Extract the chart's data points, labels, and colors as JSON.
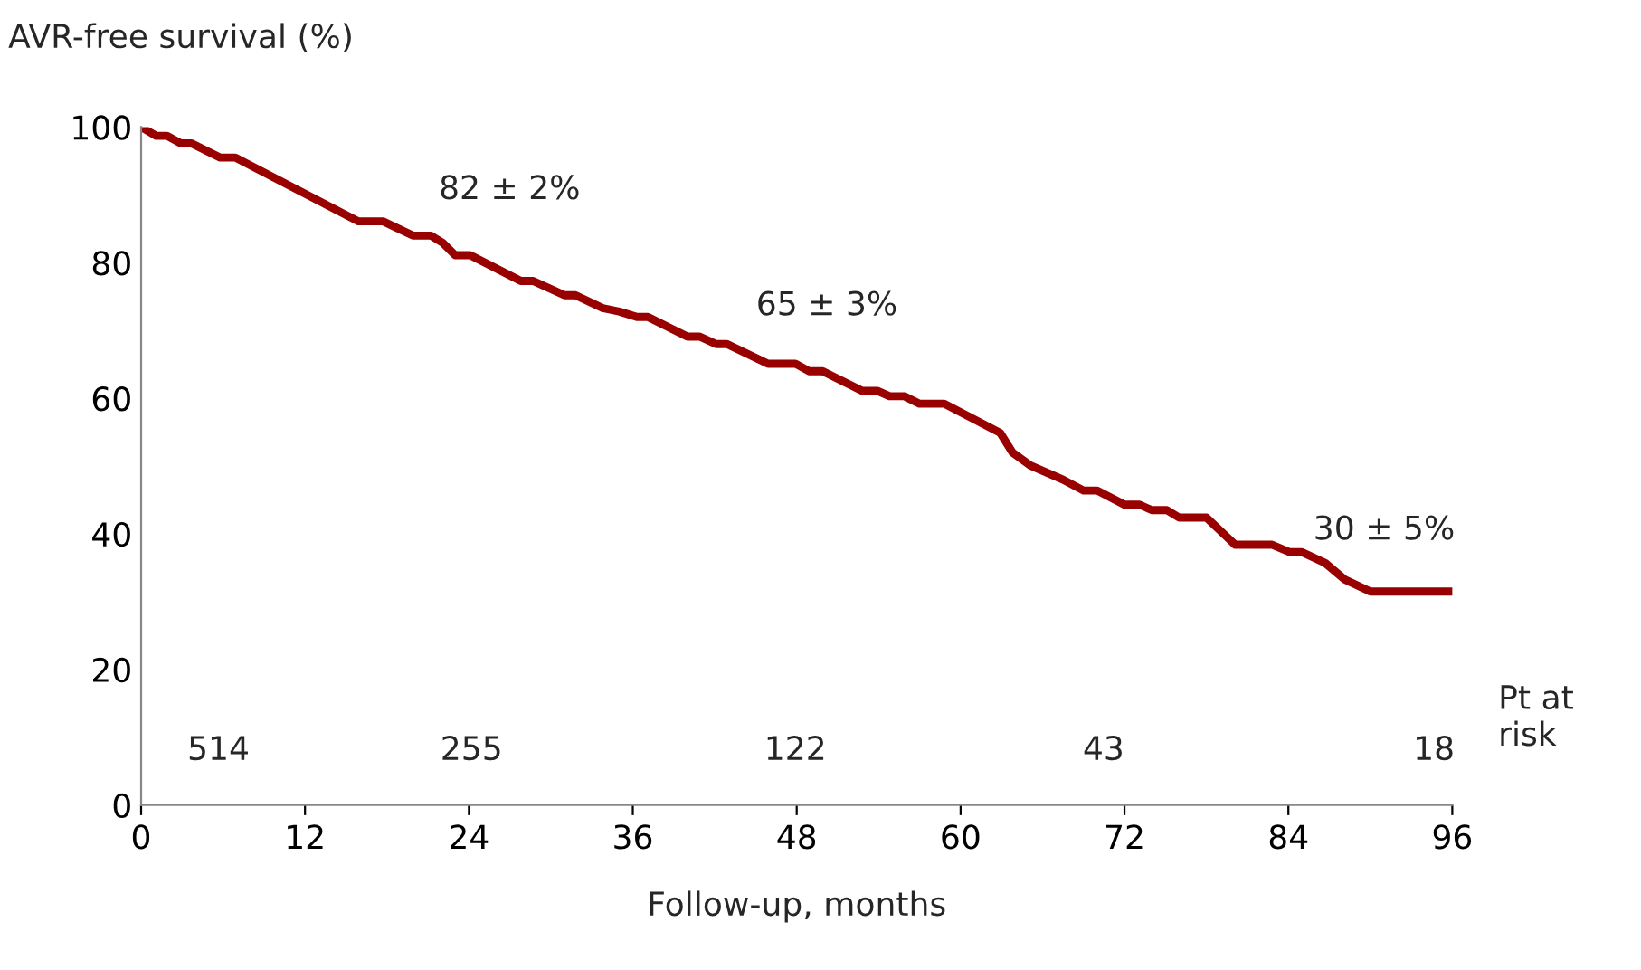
{
  "chart_data": {
    "type": "line",
    "xlabel": "Follow-up, months",
    "ylabel": "AVR-free survival (%)",
    "x": [
      0,
      1.1,
      1.9,
      2.9,
      3.7,
      5.8,
      6.9,
      15.9,
      17.7,
      19.9,
      21.2,
      22.1,
      23,
      24.1,
      27.8,
      28.7,
      31,
      31.8,
      33.8,
      35,
      36.3,
      37.1,
      40,
      40.9,
      42.1,
      42.9,
      45.9,
      47.9,
      48.9,
      49.9,
      52.8,
      53.9,
      54.8,
      55.9,
      57,
      58.8,
      62.9,
      63.8,
      65.1,
      67.5,
      69,
      70,
      72,
      73.1,
      74,
      75.1,
      76,
      78,
      80.1,
      82.8,
      84.1,
      85,
      86.7,
      88.1,
      90,
      96
    ],
    "series": [
      {
        "color": "#990000",
        "values": [
          100,
          98.7,
          98.7,
          97.6,
          97.6,
          95.5,
          95.5,
          86.1,
          86.1,
          84,
          84,
          82.9,
          81.1,
          81.1,
          77.3,
          77.3,
          75.2,
          75.2,
          73.3,
          72.8,
          72,
          72,
          69.1,
          69.1,
          68,
          68,
          65.1,
          65.1,
          64,
          64,
          61.1,
          61.1,
          60.3,
          60.3,
          59.2,
          59.2,
          54.9,
          52,
          50.1,
          48,
          46.4,
          46.4,
          44.3,
          44.3,
          43.5,
          43.5,
          42.4,
          42.4,
          38.4,
          38.4,
          37.3,
          37.3,
          35.7,
          33.3,
          31.5,
          31.5
        ]
      }
    ],
    "xlim": [
      0,
      96
    ],
    "xticks": [
      0,
      12,
      24,
      36,
      48,
      60,
      72,
      84,
      96
    ],
    "ylim": [
      0,
      100
    ],
    "yticks": [
      0,
      20,
      40,
      60,
      80,
      100
    ],
    "grid": false,
    "legend": false,
    "marker": "none",
    "line_style": "solid",
    "annotations": [
      "82 ± 2%",
      "65 ± 3%",
      "30 ± 5%",
      "514",
      "255",
      "122",
      "43",
      "18",
      "Pt at\nrisk"
    ]
  }
}
